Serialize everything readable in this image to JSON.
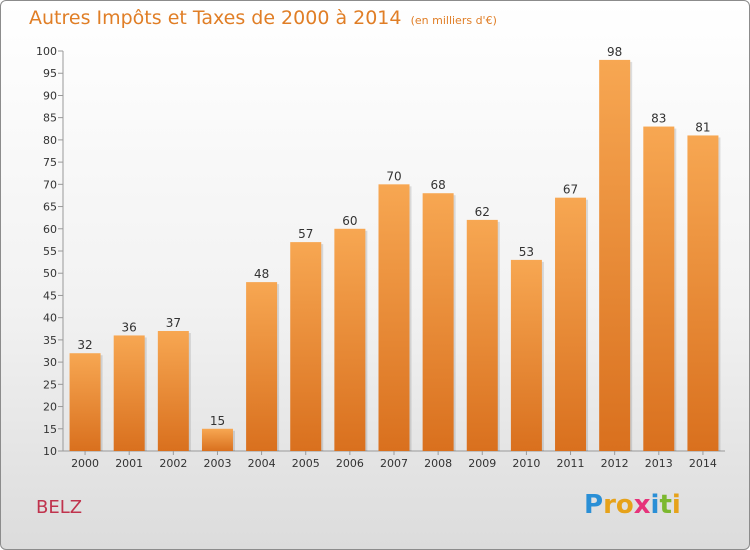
{
  "title": {
    "main": "Autres Impôts et Taxes de 2000 à 2014",
    "unit": "(en milliers d'€)"
  },
  "commune": "BELZ",
  "logo": {
    "letters": [
      "P",
      "r",
      "o",
      "x",
      "i",
      "t",
      "i"
    ],
    "colors": [
      "#2a8fd6",
      "#e6a21a",
      "#e6a21a",
      "#e6337a",
      "#2a8fd6",
      "#7cb82f",
      "#e6a21a"
    ]
  },
  "chart_data": {
    "type": "bar",
    "title": "Autres Impôts et Taxes de 2000 à 2014",
    "categories": [
      "2000",
      "2001",
      "2002",
      "2003",
      "2004",
      "2005",
      "2006",
      "2007",
      "2008",
      "2009",
      "2010",
      "2011",
      "2012",
      "2013",
      "2014"
    ],
    "values": [
      32,
      36,
      37,
      15,
      48,
      57,
      60,
      70,
      68,
      62,
      53,
      67,
      98,
      83,
      81
    ],
    "ylim": [
      10,
      100
    ],
    "yticks": [
      10,
      15,
      20,
      25,
      30,
      35,
      40,
      45,
      50,
      55,
      60,
      65,
      70,
      75,
      80,
      85,
      90,
      95,
      100
    ],
    "grid": false,
    "colors": {
      "bar_light": "#f7a752",
      "bar_dark": "#d9701e"
    }
  }
}
